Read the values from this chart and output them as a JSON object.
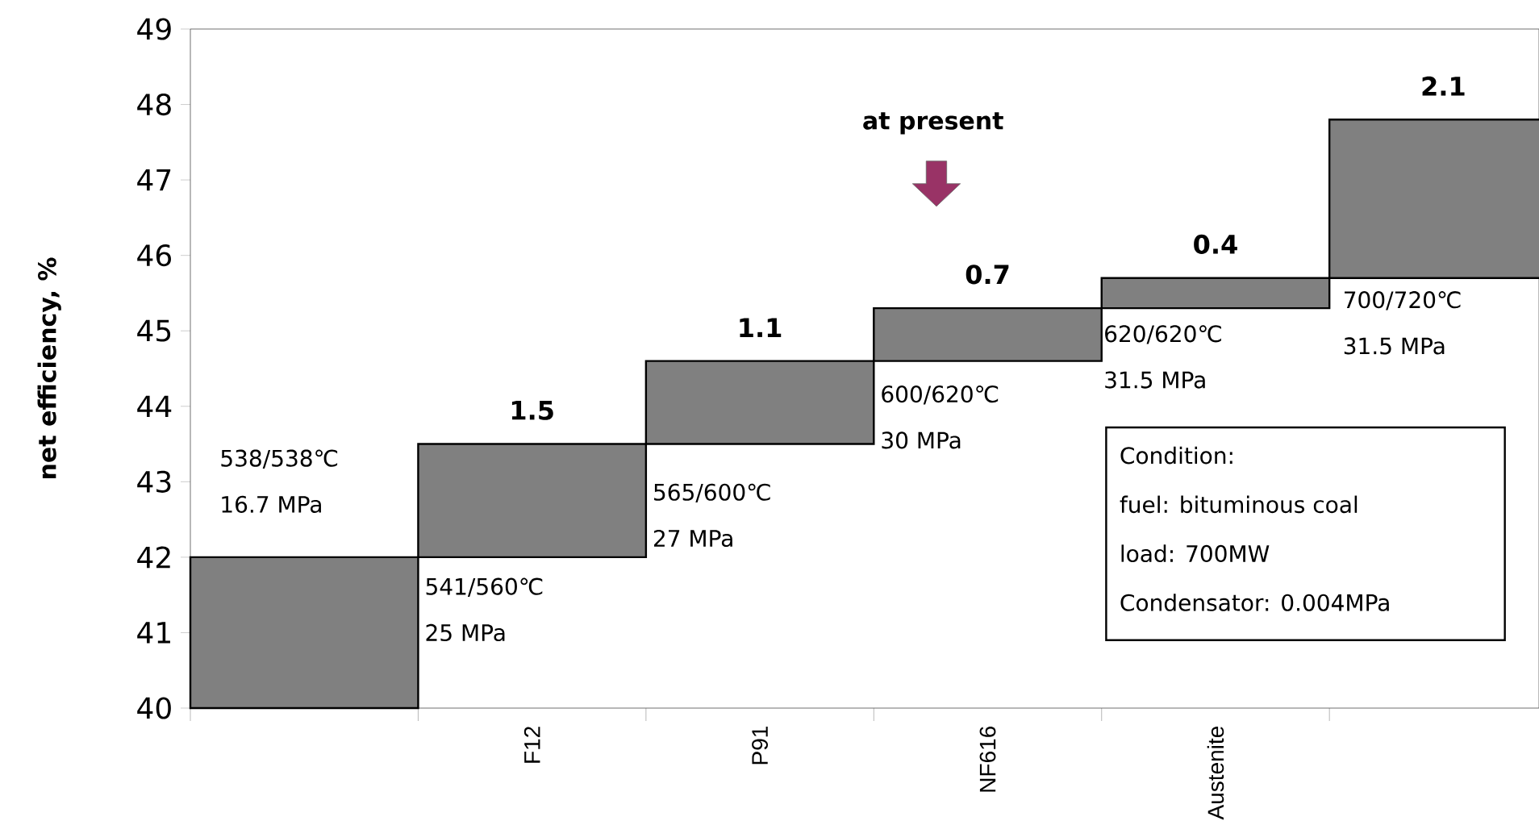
{
  "chart_data": {
    "type": "bar",
    "ylabel": "net efficiency, %",
    "categories": [
      null,
      "F12",
      "P91",
      "NF616",
      "Austenite",
      null
    ],
    "base": [
      40,
      42,
      43.5,
      44.6,
      45.3,
      45.7
    ],
    "values": [
      2,
      1.5,
      1.1,
      0.7,
      0.4,
      2.1
    ],
    "value_labels": [
      null,
      "1.5",
      "1.1",
      "0.7",
      "0.4",
      "2.1"
    ],
    "color": "#808080",
    "ylim": [
      40,
      49
    ],
    "yticks": [
      40,
      41,
      42,
      43,
      44,
      45,
      46,
      47,
      48,
      49
    ],
    "grid": false,
    "annotations": [
      "538/538℃",
      "16.7 MPa",
      "541/560℃",
      "25 MPa",
      "565/600℃",
      "27 MPa",
      "600/620℃",
      "30 MPa",
      "620/620℃",
      "31.5 MPa",
      "700/720℃",
      "31.5 MPa",
      "at present",
      "Condition:",
      "fuel: bituminous coal",
      "load: 700MW",
      "Condensator: 0.004MPa"
    ]
  }
}
